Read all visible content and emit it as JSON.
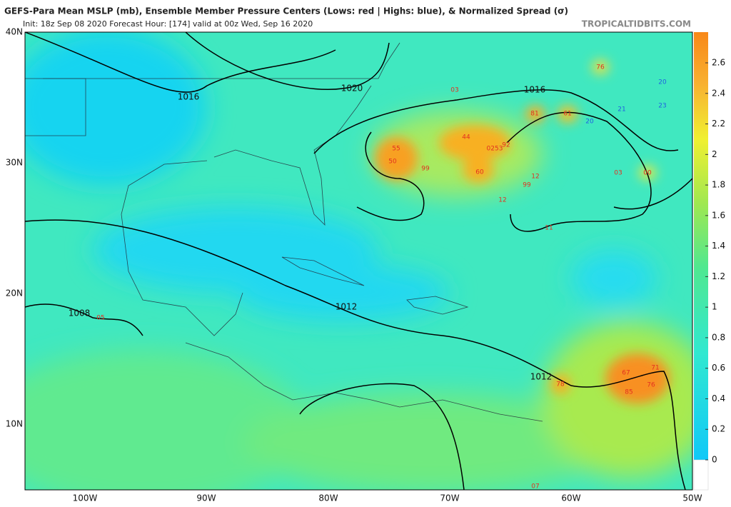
{
  "header": {
    "title": "GEFS-Para Mean MSLP (mb), Ensemble Member Pressure Centers (Lows: red | Highs: blue), & Normalized Spread (σ)",
    "subtitle": "Init: 18z Sep 08 2020   Forecast Hour: [174]   valid at 00z Wed, Sep 16 2020",
    "credit": "TROPICALTIDBITS.COM"
  },
  "map": {
    "lat_labels": [
      "40N",
      "30N",
      "20N",
      "10N"
    ],
    "lon_labels": [
      "100W",
      "90W",
      "80W",
      "70W",
      "60W",
      "50W"
    ],
    "isobar_labels": [
      "1016",
      "1020",
      "1016",
      "1012",
      "1012",
      "1008"
    ],
    "lows": [
      "55",
      "50",
      "99",
      "44",
      "0253",
      "92",
      "60",
      "12",
      "99",
      "12",
      "81",
      "61",
      "03",
      "03",
      "00",
      "11",
      "76",
      "78",
      "67",
      "71",
      "76",
      "85",
      "05",
      "07"
    ],
    "highs": [
      "20",
      "21",
      "20",
      "23"
    ]
  },
  "colorbar": {
    "ticks": [
      0,
      0.2,
      0.4,
      0.6,
      0.8,
      1,
      1.2,
      1.4,
      1.6,
      1.8,
      2,
      2.2,
      2.4,
      2.6
    ]
  }
}
